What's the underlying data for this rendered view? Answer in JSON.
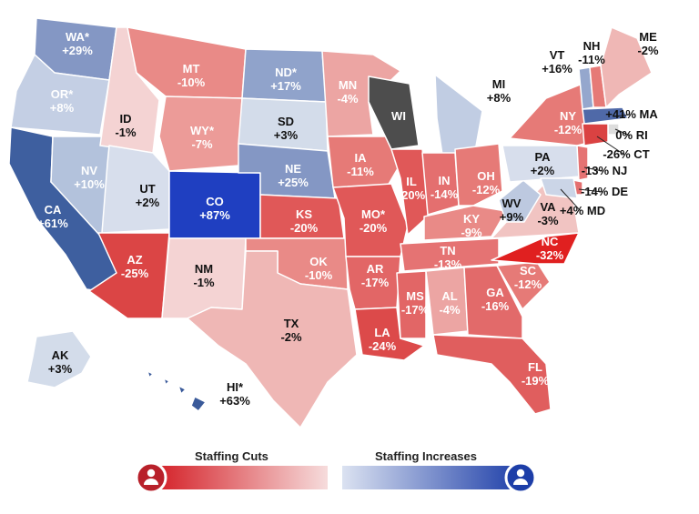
{
  "states": [
    {
      "abbr": "WA*",
      "value": "+29%",
      "fill": "#8497c4"
    },
    {
      "abbr": "OR*",
      "value": "+8%",
      "fill": "#c4cfe4"
    },
    {
      "abbr": "CA",
      "value": "+61%",
      "fill": "#3e5f9f"
    },
    {
      "abbr": "NV",
      "value": "+10%",
      "fill": "#b3c2dc"
    },
    {
      "abbr": "ID",
      "value": "-1%",
      "fill": "#f4d3d3"
    },
    {
      "abbr": "UT",
      "value": "+2%",
      "fill": "#d7deec"
    },
    {
      "abbr": "AZ",
      "value": "-25%",
      "fill": "#db4545"
    },
    {
      "abbr": "MT",
      "value": "-10%",
      "fill": "#e98a87"
    },
    {
      "abbr": "WY*",
      "value": "-7%",
      "fill": "#ec9b98"
    },
    {
      "abbr": "CO",
      "value": "+87%",
      "fill": "#1f3fc1"
    },
    {
      "abbr": "NM",
      "value": "-1%",
      "fill": "#f4d3d3"
    },
    {
      "abbr": "ND*",
      "value": "+17%",
      "fill": "#90a3cb"
    },
    {
      "abbr": "SD",
      "value": "+3%",
      "fill": "#d3dcea"
    },
    {
      "abbr": "NE",
      "value": "+25%",
      "fill": "#8497c4"
    },
    {
      "abbr": "KS",
      "value": "-20%",
      "fill": "#e05858"
    },
    {
      "abbr": "OK",
      "value": "-10%",
      "fill": "#e98a87"
    },
    {
      "abbr": "TX",
      "value": "-2%",
      "fill": "#efb7b5"
    },
    {
      "abbr": "MN",
      "value": "-4%",
      "fill": "#eca5a3"
    },
    {
      "abbr": "IA",
      "value": "-11%",
      "fill": "#e67a77"
    },
    {
      "abbr": "MO*",
      "value": "-20%",
      "fill": "#e05858"
    },
    {
      "abbr": "AR",
      "value": "-17%",
      "fill": "#e26666"
    },
    {
      "abbr": "LA",
      "value": "-24%",
      "fill": "#dc4a4a"
    },
    {
      "abbr": "WI",
      "value": "",
      "fill": "#4d4d4d"
    },
    {
      "abbr": "IL",
      "value": "-20%",
      "fill": "#e05858"
    },
    {
      "abbr": "MS",
      "value": "-17%",
      "fill": "#e26666"
    },
    {
      "abbr": "MI",
      "value": "+8%",
      "fill": "#c1cde3"
    },
    {
      "abbr": "IN",
      "value": "-14%",
      "fill": "#e46f6f"
    },
    {
      "abbr": "OH",
      "value": "-12%",
      "fill": "#e67a77"
    },
    {
      "abbr": "KY",
      "value": "-9%",
      "fill": "#e98a87"
    },
    {
      "abbr": "TN",
      "value": "-13%",
      "fill": "#e57373"
    },
    {
      "abbr": "AL",
      "value": "-4%",
      "fill": "#eca5a3"
    },
    {
      "abbr": "GA",
      "value": "-16%",
      "fill": "#e26a6a"
    },
    {
      "abbr": "FL",
      "value": "-19%",
      "fill": "#e05e5e"
    },
    {
      "abbr": "SC",
      "value": "-12%",
      "fill": "#e67a77"
    },
    {
      "abbr": "NC",
      "value": "-32%",
      "fill": "#e02020"
    },
    {
      "abbr": "VA",
      "value": "-3%",
      "fill": "#f1c4c2"
    },
    {
      "abbr": "WV",
      "value": "+9%",
      "fill": "#bdc9e0"
    },
    {
      "abbr": "PA",
      "value": "+2%",
      "fill": "#d7deec"
    },
    {
      "abbr": "NY",
      "value": "-12%",
      "fill": "#e67a77"
    },
    {
      "abbr": "VT",
      "value": "+16%",
      "fill": "#95a7cd"
    },
    {
      "abbr": "NH",
      "value": "-11%",
      "fill": "#e67a77"
    },
    {
      "abbr": "ME",
      "value": "-2%",
      "fill": "#efb7b5"
    },
    {
      "abbr": "MA",
      "value": "+41%",
      "fill": "#4f69a8"
    },
    {
      "abbr": "RI",
      "value": "0%",
      "fill": "#dddddd"
    },
    {
      "abbr": "CT",
      "value": "-26%",
      "fill": "#da4242"
    },
    {
      "abbr": "NJ",
      "value": "-13%",
      "fill": "#e57373"
    },
    {
      "abbr": "DE",
      "value": "-14%",
      "fill": "#e46f6f"
    },
    {
      "abbr": "MD",
      "value": "+4%",
      "fill": "#cbd5e7"
    },
    {
      "abbr": "AK",
      "value": "+3%",
      "fill": "#d3dcea"
    },
    {
      "abbr": "HI*",
      "value": "+63%",
      "fill": "#3a5a9a"
    }
  ],
  "callouts": {
    "MA": "+41% MA",
    "RI": "0% RI",
    "CT": "-26% CT",
    "NJ": "-13% NJ",
    "DE": "-14% DE",
    "MD": "+4% MD"
  },
  "legend": {
    "cuts_label": "Staffing Cuts",
    "increases_label": "Staffing Increases",
    "cuts_color_dark": "#b8202a",
    "cuts_color_light": "#f5d8d8",
    "increases_color_light": "#d8dff0",
    "increases_color_dark": "#1d3ea8"
  }
}
